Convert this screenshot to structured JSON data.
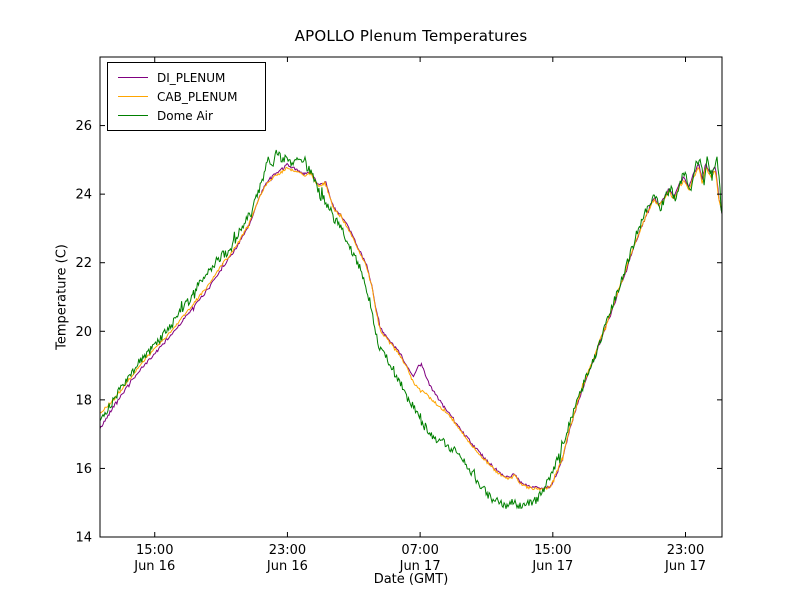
{
  "chart_data": {
    "type": "line",
    "title": "APOLLO Plenum Temperatures",
    "xlabel": "Date (GMT)",
    "ylabel": "Temperature (C)",
    "x_unit": "hours since Jun 16 00:00 GMT",
    "xlim": [
      11.7,
      49.2
    ],
    "ylim": [
      14,
      28
    ],
    "grid": false,
    "legend_position": "upper left",
    "background": "#ffffff",
    "frame_color": "#000000",
    "yticks": [
      14,
      16,
      18,
      20,
      22,
      24,
      26
    ],
    "xticks": [
      {
        "value": 15,
        "time": "15:00",
        "date": "Jun 16"
      },
      {
        "value": 23,
        "time": "23:00",
        "date": "Jun 16"
      },
      {
        "value": 31,
        "time": "07:00",
        "date": "Jun 17"
      },
      {
        "value": 39,
        "time": "15:00",
        "date": "Jun 17"
      },
      {
        "value": 47,
        "time": "23:00",
        "date": "Jun 17"
      }
    ],
    "series": [
      {
        "name": "DI_PLENUM",
        "color": "#800080",
        "noise": 0.04,
        "points": [
          [
            11.7,
            17.15
          ],
          [
            12.5,
            17.8
          ],
          [
            13,
            18.15
          ],
          [
            14,
            18.8
          ],
          [
            15,
            19.35
          ],
          [
            16,
            19.9
          ],
          [
            17,
            20.5
          ],
          [
            18,
            21.1
          ],
          [
            19,
            21.8
          ],
          [
            20,
            22.5
          ],
          [
            20.7,
            23.1
          ],
          [
            21.3,
            23.9
          ],
          [
            21.8,
            24.4
          ],
          [
            22.3,
            24.6
          ],
          [
            23,
            24.85
          ],
          [
            23.6,
            24.7
          ],
          [
            24,
            24.6
          ],
          [
            24.4,
            24.65
          ],
          [
            24.8,
            24.3
          ],
          [
            25.3,
            24.35
          ],
          [
            25.8,
            23.6
          ],
          [
            26.3,
            23.35
          ],
          [
            26.8,
            22.9
          ],
          [
            27.3,
            22.4
          ],
          [
            27.8,
            21.9
          ],
          [
            28.1,
            21.3
          ],
          [
            28.4,
            20.5
          ],
          [
            28.7,
            20.0
          ],
          [
            29.2,
            19.7
          ],
          [
            29.7,
            19.4
          ],
          [
            30.2,
            19.0
          ],
          [
            30.6,
            18.65
          ],
          [
            30.9,
            19.0
          ],
          [
            31.1,
            19.05
          ],
          [
            31.3,
            18.75
          ],
          [
            31.6,
            18.4
          ],
          [
            32,
            18.1
          ],
          [
            32.5,
            17.75
          ],
          [
            33,
            17.45
          ],
          [
            33.5,
            17.1
          ],
          [
            34,
            16.8
          ],
          [
            34.5,
            16.5
          ],
          [
            35,
            16.25
          ],
          [
            35.5,
            16.0
          ],
          [
            36,
            15.8
          ],
          [
            36.4,
            15.75
          ],
          [
            36.7,
            15.85
          ],
          [
            37,
            15.6
          ],
          [
            37.5,
            15.5
          ],
          [
            38,
            15.45
          ],
          [
            38.5,
            15.4
          ],
          [
            38.9,
            15.5
          ],
          [
            39.2,
            15.8
          ],
          [
            39.6,
            16.3
          ],
          [
            40,
            17.1
          ],
          [
            40.5,
            17.9
          ],
          [
            41,
            18.6
          ],
          [
            41.5,
            19.2
          ],
          [
            42,
            19.9
          ],
          [
            42.5,
            20.5
          ],
          [
            43,
            21.2
          ],
          [
            43.5,
            21.9
          ],
          [
            44,
            22.6
          ],
          [
            44.4,
            23.1
          ],
          [
            44.8,
            23.6
          ],
          [
            45.1,
            23.9
          ],
          [
            45.4,
            23.7
          ],
          [
            45.7,
            23.9
          ],
          [
            46,
            24.15
          ],
          [
            46.3,
            23.9
          ],
          [
            46.6,
            24.3
          ],
          [
            46.9,
            24.5
          ],
          [
            47.2,
            24.2
          ],
          [
            47.5,
            24.6
          ],
          [
            47.8,
            24.9
          ],
          [
            48.0,
            24.4
          ],
          [
            48.2,
            24.9
          ],
          [
            48.5,
            24.6
          ],
          [
            48.8,
            24.8
          ],
          [
            49.0,
            24.0
          ],
          [
            49.2,
            23.4
          ]
        ]
      },
      {
        "name": "CAB_PLENUM",
        "color": "#FFA500",
        "noise": 0.04,
        "points": [
          [
            11.7,
            17.6
          ],
          [
            12.5,
            18.0
          ],
          [
            13,
            18.3
          ],
          [
            14,
            18.95
          ],
          [
            15,
            19.5
          ],
          [
            16,
            20.0
          ],
          [
            17,
            20.6
          ],
          [
            18,
            21.2
          ],
          [
            19,
            21.9
          ],
          [
            20,
            22.55
          ],
          [
            20.7,
            23.15
          ],
          [
            21.3,
            23.9
          ],
          [
            21.8,
            24.35
          ],
          [
            22.3,
            24.55
          ],
          [
            23,
            24.75
          ],
          [
            23.6,
            24.65
          ],
          [
            24,
            24.55
          ],
          [
            24.4,
            24.6
          ],
          [
            24.8,
            24.25
          ],
          [
            25.3,
            24.3
          ],
          [
            25.8,
            23.55
          ],
          [
            26.3,
            23.3
          ],
          [
            26.8,
            22.85
          ],
          [
            27.3,
            22.35
          ],
          [
            27.8,
            21.85
          ],
          [
            28.1,
            21.25
          ],
          [
            28.4,
            20.45
          ],
          [
            28.7,
            19.95
          ],
          [
            29.2,
            19.65
          ],
          [
            29.7,
            19.35
          ],
          [
            30.2,
            18.95
          ],
          [
            30.6,
            18.5
          ],
          [
            31,
            18.3
          ],
          [
            31.4,
            18.15
          ],
          [
            31.8,
            17.95
          ],
          [
            32.2,
            17.8
          ],
          [
            32.6,
            17.6
          ],
          [
            33,
            17.4
          ],
          [
            33.5,
            17.05
          ],
          [
            34,
            16.75
          ],
          [
            34.5,
            16.45
          ],
          [
            35,
            16.2
          ],
          [
            35.5,
            15.95
          ],
          [
            36,
            15.75
          ],
          [
            36.4,
            15.7
          ],
          [
            36.7,
            15.8
          ],
          [
            37,
            15.55
          ],
          [
            37.5,
            15.45
          ],
          [
            38,
            15.4
          ],
          [
            38.5,
            15.4
          ],
          [
            38.9,
            15.5
          ],
          [
            39.2,
            15.85
          ],
          [
            39.6,
            16.35
          ],
          [
            40,
            17.15
          ],
          [
            40.5,
            17.95
          ],
          [
            41,
            18.65
          ],
          [
            41.5,
            19.25
          ],
          [
            42,
            19.95
          ],
          [
            42.5,
            20.55
          ],
          [
            43,
            21.25
          ],
          [
            43.5,
            21.95
          ],
          [
            44,
            22.65
          ],
          [
            44.4,
            23.1
          ],
          [
            44.8,
            23.55
          ],
          [
            45.1,
            23.85
          ],
          [
            45.4,
            23.65
          ],
          [
            45.7,
            23.85
          ],
          [
            46,
            24.1
          ],
          [
            46.3,
            23.85
          ],
          [
            46.6,
            24.2
          ],
          [
            46.9,
            24.4
          ],
          [
            47.2,
            24.1
          ],
          [
            47.5,
            24.5
          ],
          [
            47.8,
            24.8
          ],
          [
            48.0,
            24.3
          ],
          [
            48.2,
            24.8
          ],
          [
            48.5,
            24.5
          ],
          [
            48.8,
            24.7
          ],
          [
            49.0,
            23.9
          ],
          [
            49.2,
            23.5
          ]
        ]
      },
      {
        "name": "Dome Air",
        "color": "#008000",
        "noise": 0.13,
        "points": [
          [
            11.7,
            17.3
          ],
          [
            12.5,
            18.0
          ],
          [
            13,
            18.35
          ],
          [
            14,
            19.05
          ],
          [
            15,
            19.6
          ],
          [
            16,
            20.2
          ],
          [
            17,
            20.85
          ],
          [
            17.5,
            21.3
          ],
          [
            18,
            21.5
          ],
          [
            18.5,
            21.9
          ],
          [
            19,
            22.2
          ],
          [
            19.5,
            22.3
          ],
          [
            20,
            22.8
          ],
          [
            20.5,
            23.2
          ],
          [
            21,
            23.7
          ],
          [
            21.5,
            24.4
          ],
          [
            21.8,
            25.0
          ],
          [
            22.1,
            24.9
          ],
          [
            22.4,
            25.2
          ],
          [
            22.7,
            25.0
          ],
          [
            23,
            25.1
          ],
          [
            23.3,
            24.95
          ],
          [
            23.6,
            25.05
          ],
          [
            24,
            24.9
          ],
          [
            24.3,
            24.7
          ],
          [
            24.6,
            24.5
          ],
          [
            25,
            23.9
          ],
          [
            25.4,
            23.8
          ],
          [
            25.8,
            23.3
          ],
          [
            26.2,
            23.1
          ],
          [
            26.6,
            22.6
          ],
          [
            27,
            22.2
          ],
          [
            27.4,
            21.8
          ],
          [
            27.7,
            21.4
          ],
          [
            28,
            20.8
          ],
          [
            28.3,
            19.9
          ],
          [
            28.6,
            19.5
          ],
          [
            29,
            19.2
          ],
          [
            29.4,
            18.9
          ],
          [
            29.8,
            18.5
          ],
          [
            30.2,
            18.1
          ],
          [
            30.6,
            17.8
          ],
          [
            31,
            17.4
          ],
          [
            31.4,
            17.15
          ],
          [
            31.8,
            16.9
          ],
          [
            32.2,
            16.85
          ],
          [
            32.6,
            16.7
          ],
          [
            33,
            16.55
          ],
          [
            33.4,
            16.3
          ],
          [
            33.8,
            16.1
          ],
          [
            34.2,
            15.8
          ],
          [
            34.6,
            15.5
          ],
          [
            35,
            15.3
          ],
          [
            35.4,
            15.1
          ],
          [
            35.8,
            15.0
          ],
          [
            36.2,
            14.95
          ],
          [
            36.6,
            15.05
          ],
          [
            37,
            14.9
          ],
          [
            37.4,
            14.95
          ],
          [
            37.8,
            15.0
          ],
          [
            38.2,
            15.2
          ],
          [
            38.6,
            15.5
          ],
          [
            39,
            15.9
          ],
          [
            39.4,
            16.4
          ],
          [
            39.8,
            17.0
          ],
          [
            40.2,
            17.6
          ],
          [
            40.7,
            18.3
          ],
          [
            41.2,
            18.9
          ],
          [
            41.7,
            19.5
          ],
          [
            42.2,
            20.2
          ],
          [
            42.7,
            20.9
          ],
          [
            43.2,
            21.6
          ],
          [
            43.7,
            22.3
          ],
          [
            44.1,
            22.9
          ],
          [
            44.5,
            23.4
          ],
          [
            44.9,
            23.8
          ],
          [
            45.2,
            24.0
          ],
          [
            45.5,
            23.6
          ],
          [
            45.8,
            23.9
          ],
          [
            46.1,
            24.2
          ],
          [
            46.4,
            23.8
          ],
          [
            46.7,
            24.4
          ],
          [
            47,
            24.6
          ],
          [
            47.3,
            24.1
          ],
          [
            47.6,
            24.8
          ],
          [
            47.9,
            25.1
          ],
          [
            48.1,
            24.3
          ],
          [
            48.3,
            25.0
          ],
          [
            48.6,
            24.5
          ],
          [
            48.9,
            25.0
          ],
          [
            49.05,
            24.3
          ],
          [
            49.2,
            23.3
          ]
        ]
      }
    ]
  }
}
